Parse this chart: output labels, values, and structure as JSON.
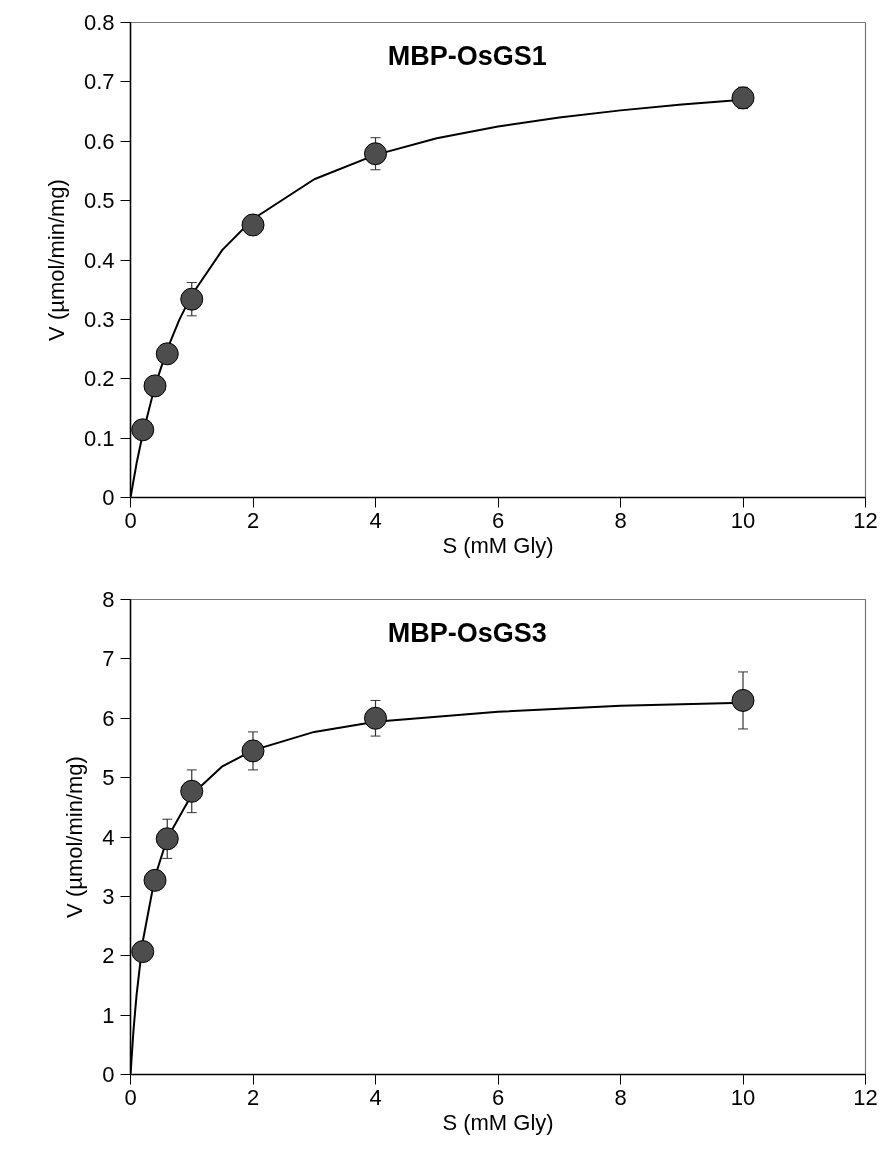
{
  "chart_data": [
    {
      "type": "scatter",
      "title": "MBP-OsGS1",
      "xlabel": "S (mM Gly)",
      "ylabel": "V (µmol/min/mg)",
      "xlim": [
        0,
        12
      ],
      "xticks": [
        0,
        2,
        4,
        6,
        8,
        10,
        12
      ],
      "ylim": [
        0,
        0.8
      ],
      "yticks": [
        0,
        0.1,
        0.2,
        0.3,
        0.4,
        0.5,
        0.6,
        0.7,
        0.8
      ],
      "grid": false,
      "marker": "circle",
      "series": [
        {
          "type": "line",
          "marker": "none",
          "color": "#000000",
          "x": [
            0,
            0.1,
            0.2,
            0.4,
            0.6,
            0.8,
            1,
            1.5,
            2,
            3,
            4,
            5,
            6,
            7,
            8,
            9,
            10
          ],
          "values": [
            0,
            0.058,
            0.107,
            0.188,
            0.25,
            0.3,
            0.341,
            0.417,
            0.469,
            0.536,
            0.577,
            0.605,
            0.625,
            0.64,
            0.652,
            0.662,
            0.67
          ]
        },
        {
          "color": "#4d4d4d",
          "x": [
            0.2,
            0.4,
            0.6,
            1,
            2,
            4,
            10
          ],
          "values": [
            0.114,
            0.188,
            0.242,
            0.334,
            0.459,
            0.579,
            0.673
          ],
          "errors": [
            null,
            null,
            null,
            0.028,
            null,
            0.027,
            0.018
          ]
        }
      ]
    },
    {
      "type": "scatter",
      "title": "MBP-OsGS3",
      "xlabel": "S (mM Gly)",
      "ylabel": "V (µmol/min/mg)",
      "xlim": [
        0,
        12
      ],
      "xticks": [
        0,
        2,
        4,
        6,
        8,
        10,
        12
      ],
      "ylim": [
        0,
        8
      ],
      "yticks": [
        0,
        1,
        2,
        3,
        4,
        5,
        6,
        7,
        8
      ],
      "grid": false,
      "marker": "circle",
      "series": [
        {
          "type": "line",
          "marker": "none",
          "color": "#000000",
          "x": [
            0,
            0.05,
            0.1,
            0.2,
            0.4,
            0.6,
            1,
            1.5,
            2,
            3,
            4,
            6,
            8,
            10
          ],
          "values": [
            0,
            0.76,
            1.35,
            2.24,
            3.33,
            3.98,
            4.71,
            5.19,
            5.46,
            5.77,
            5.94,
            6.11,
            6.21,
            6.26
          ]
        },
        {
          "color": "#4d4d4d",
          "x": [
            0.2,
            0.4,
            0.6,
            1,
            2,
            4,
            10
          ],
          "values": [
            2.07,
            3.27,
            3.97,
            4.77,
            5.45,
            6.0,
            6.3
          ],
          "errors": [
            null,
            null,
            0.33,
            0.36,
            0.32,
            0.3,
            0.48
          ]
        }
      ]
    }
  ]
}
